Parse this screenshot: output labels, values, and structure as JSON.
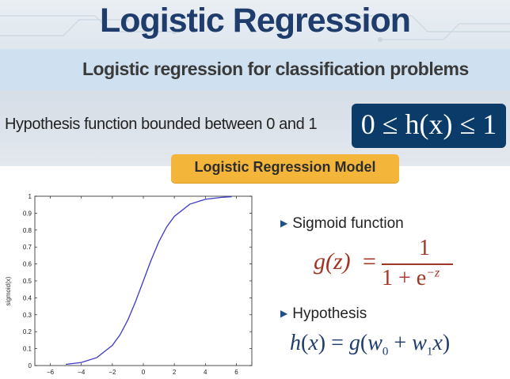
{
  "header": {
    "title": "Logistic Regression"
  },
  "subtitle": "Logistic regression for classification problems",
  "hypothesis_bound": {
    "text": "Hypothesis function bounded between 0 and 1",
    "formula": "0 ≤ h(x) ≤ 1"
  },
  "model_label": "Logistic Regression Model",
  "right": {
    "sigmoid_heading": "Sigmoid function",
    "sigmoid_lhs": "g(z)",
    "sigmoid_eq": "=",
    "sigmoid_num": "1",
    "sigmoid_den": "1 + e",
    "sigmoid_exp": "−z",
    "hypothesis_heading": "Hypothesis",
    "hypothesis_formula": "h(x) = g(w0 + w1x)"
  },
  "colors": {
    "title": "#1f3d6c",
    "box": "#0b3c69",
    "label_bg": "#f4b63a",
    "sigmoid_formula": "#a13526",
    "curve": "#3b3bc8"
  },
  "chart_data": {
    "type": "line",
    "xlabel": "",
    "ylabel": "sigmoid(x)",
    "xlim": [
      -7,
      7
    ],
    "ylim": [
      0,
      1
    ],
    "x_ticks": [
      -6,
      -4,
      -2,
      0,
      2,
      4,
      6
    ],
    "y_ticks": [
      0,
      0.1,
      0.2,
      0.3,
      0.4,
      0.5,
      0.6,
      0.7,
      0.8,
      0.9,
      1
    ],
    "x_tick_labels": [
      "−6",
      "−4",
      "−2",
      "0",
      "2",
      "4",
      "6"
    ],
    "y_tick_labels": [
      "0",
      "0.1",
      "0.2",
      "0.3",
      "0.4",
      "0.5",
      "0.6",
      "0.7",
      "0.8",
      "0.9",
      "1"
    ],
    "series": [
      {
        "x": [
          -5,
          -4,
          -3,
          -2,
          -1.5,
          -1,
          -0.5,
          0,
          0.5,
          1,
          1.5,
          2,
          3,
          4,
          5,
          5.7
        ],
        "y": [
          0.007,
          0.018,
          0.047,
          0.119,
          0.182,
          0.269,
          0.378,
          0.5,
          0.622,
          0.731,
          0.818,
          0.881,
          0.953,
          0.982,
          0.993,
          0.997
        ]
      }
    ]
  }
}
